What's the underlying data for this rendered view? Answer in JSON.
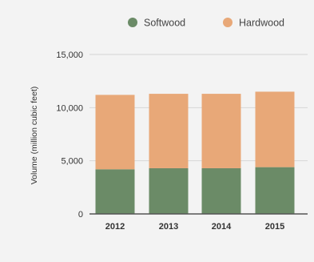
{
  "chart_data": {
    "type": "bar",
    "stacked": true,
    "categories": [
      "2012",
      "2013",
      "2014",
      "2015"
    ],
    "series": [
      {
        "name": "Softwood",
        "color": "#6b8b67",
        "values": [
          4200,
          4300,
          4300,
          4400
        ]
      },
      {
        "name": "Hardwood",
        "color": "#e8a878",
        "values": [
          7000,
          7000,
          7000,
          7100
        ]
      }
    ],
    "title": "",
    "xlabel": "",
    "ylabel": "Volume (million cubic feet)",
    "ylim": [
      0,
      15000
    ],
    "yticks": [
      0,
      5000,
      10000,
      15000
    ],
    "ytick_labels": [
      "0",
      "5,000",
      "10,000",
      "15,000"
    ],
    "grid": true,
    "legend_position": "top-right"
  }
}
